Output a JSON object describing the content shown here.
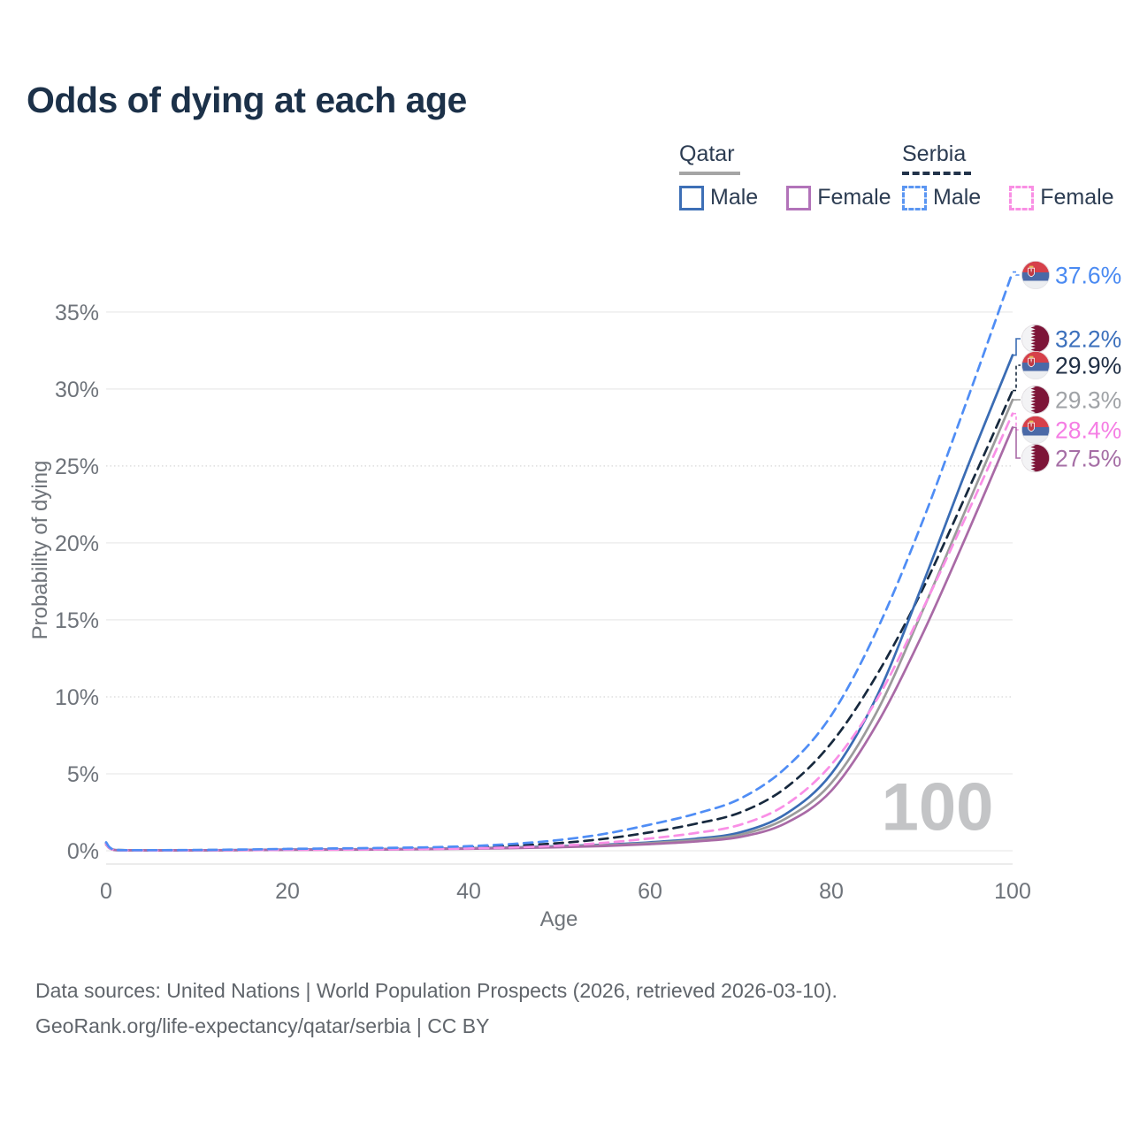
{
  "title": "Odds of dying at each age",
  "watermark": "100",
  "legend": {
    "groups": [
      {
        "label": "Qatar",
        "underline_color": "#a5a5a5",
        "style": "solid",
        "items": [
          {
            "label": "Male",
            "color": "#3d6fb6"
          },
          {
            "label": "Female",
            "color": "#b273b9"
          }
        ]
      },
      {
        "label": "Serbia",
        "underline_color": "#22334a",
        "style": "dashed",
        "items": [
          {
            "label": "Male",
            "color": "#5b96f2"
          },
          {
            "label": "Female",
            "color": "#f98fe4"
          }
        ]
      }
    ]
  },
  "footer": {
    "line1": "Data sources: United Nations | World Population Prospects (2026, retrieved 2026-03-10).",
    "line2": "GeoRank.org/life-expectancy/qatar/serbia | CC BY"
  },
  "chart_data": {
    "type": "line",
    "title": "Odds of dying at each age",
    "xlabel": "Age",
    "ylabel": "Probability of dying",
    "xlim": [
      0,
      100
    ],
    "ylim": [
      0,
      38.5
    ],
    "xticks": [
      0,
      20,
      40,
      60,
      80,
      100
    ],
    "yticks": [
      0,
      5,
      10,
      15,
      20,
      25,
      30,
      35
    ],
    "ytick_suffix": "%",
    "dotted_gridlines": [
      10,
      25
    ],
    "legend_position": "top-right",
    "grid": true,
    "x": [
      0,
      1,
      5,
      10,
      15,
      20,
      25,
      30,
      35,
      40,
      45,
      50,
      55,
      60,
      65,
      70,
      75,
      80,
      85,
      90,
      95,
      100
    ],
    "series": [
      {
        "name": "Serbia Male",
        "country": "Serbia",
        "sex": "Male",
        "flag": "serbia",
        "dashed": true,
        "color": "#4f8df5",
        "label_color": "#4a8af2",
        "end_label": "37.6%",
        "values": [
          0.55,
          0.06,
          0.04,
          0.05,
          0.08,
          0.12,
          0.15,
          0.18,
          0.22,
          0.3,
          0.45,
          0.7,
          1.1,
          1.7,
          2.4,
          3.4,
          5.4,
          8.8,
          14.3,
          21.3,
          29.3,
          37.6
        ]
      },
      {
        "name": "Qatar Male",
        "country": "Qatar",
        "sex": "Male",
        "flag": "qatar",
        "dashed": false,
        "color": "#3a6cb4",
        "label_color": "#3c70bc",
        "end_label": "32.2%",
        "values": [
          0.5,
          0.05,
          0.03,
          0.03,
          0.05,
          0.08,
          0.09,
          0.11,
          0.13,
          0.17,
          0.22,
          0.3,
          0.4,
          0.55,
          0.78,
          1.2,
          2.4,
          5.0,
          10.0,
          17.2,
          24.9,
          32.2
        ]
      },
      {
        "name": "Serbia Total",
        "country": "Serbia",
        "sex": "Total",
        "flag": "serbia",
        "dashed": true,
        "color": "#17293e",
        "label_color": "#202f45",
        "end_label": "29.9%",
        "values": [
          0.5,
          0.05,
          0.03,
          0.04,
          0.06,
          0.09,
          0.11,
          0.14,
          0.17,
          0.23,
          0.33,
          0.5,
          0.78,
          1.2,
          1.75,
          2.5,
          4.1,
          7.0,
          11.4,
          16.9,
          23.3,
          29.9
        ]
      },
      {
        "name": "Qatar Total",
        "country": "Qatar",
        "sex": "Total",
        "flag": "qatar",
        "dashed": false,
        "color": "#9b9b9b",
        "label_color": "#a0a3a7",
        "end_label": "29.3%",
        "values": [
          0.45,
          0.05,
          0.03,
          0.03,
          0.04,
          0.07,
          0.08,
          0.1,
          0.12,
          0.15,
          0.2,
          0.27,
          0.36,
          0.5,
          0.7,
          1.05,
          2.1,
          4.4,
          9.0,
          15.5,
          22.4,
          29.3
        ]
      },
      {
        "name": "Serbia Female",
        "country": "Serbia",
        "sex": "Female",
        "flag": "serbia",
        "dashed": true,
        "color": "#f98fe6",
        "label_color": "#f57ee4",
        "end_label": "28.4%",
        "values": [
          0.45,
          0.04,
          0.02,
          0.03,
          0.04,
          0.06,
          0.07,
          0.09,
          0.11,
          0.15,
          0.22,
          0.33,
          0.52,
          0.8,
          1.15,
          1.7,
          3.0,
          5.6,
          9.8,
          15.6,
          21.9,
          28.4
        ]
      },
      {
        "name": "Qatar Female",
        "country": "Qatar",
        "sex": "Female",
        "flag": "qatar",
        "dashed": false,
        "color": "#a96aa6",
        "label_color": "#a66fa6",
        "end_label": "27.5%",
        "values": [
          0.4,
          0.04,
          0.02,
          0.03,
          0.04,
          0.06,
          0.07,
          0.08,
          0.1,
          0.13,
          0.17,
          0.23,
          0.31,
          0.43,
          0.6,
          0.9,
          1.8,
          3.9,
          8.2,
          14.0,
          20.6,
          27.5
        ]
      }
    ]
  }
}
